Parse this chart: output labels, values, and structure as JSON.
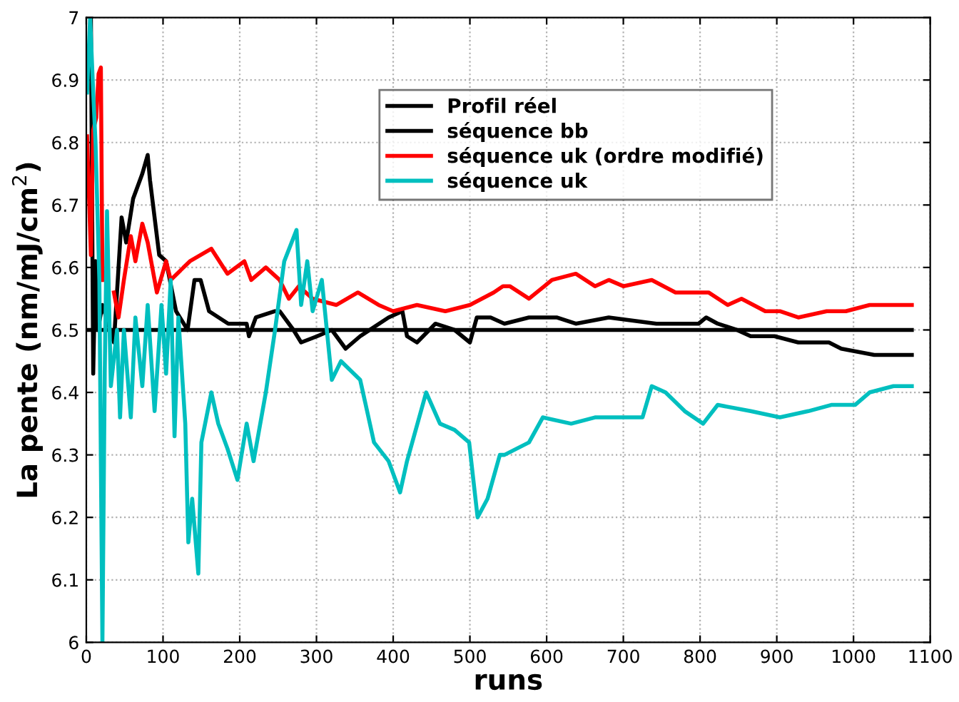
{
  "chart_data": {
    "type": "line",
    "xlabel": "runs",
    "ylabel": "La pente (nm/mJ/cm$^{2}$)",
    "xlim": [
      0,
      1100
    ],
    "ylim": [
      6,
      7
    ],
    "xticks": [
      0,
      100,
      200,
      300,
      400,
      500,
      600,
      700,
      800,
      900,
      1000,
      1100
    ],
    "yticks": [
      6,
      6.1,
      6.2,
      6.3,
      6.4,
      6.5,
      6.6,
      6.7,
      6.8,
      6.9,
      7
    ],
    "grid": true,
    "legend": "top",
    "marker": "none",
    "line_style": "solid",
    "series": [
      {
        "name": "Profil réel",
        "color": "#000000",
        "x": [
          0,
          1076
        ],
        "values": [
          6.5,
          6.5
        ]
      },
      {
        "name": "séquence bb",
        "color": "#000000",
        "x": [
          6,
          9,
          12,
          15,
          21,
          36,
          46,
          52,
          61,
          73,
          80,
          83,
          95,
          104,
          117,
          132,
          141,
          149,
          160,
          185,
          209,
          212,
          221,
          246,
          252,
          270,
          280,
          301,
          320,
          338,
          357,
          394,
          412,
          418,
          431,
          455,
          480,
          500,
          509,
          527,
          545,
          577,
          613,
          638,
          681,
          743,
          798,
          808,
          823,
          848,
          866,
          897,
          928,
          968,
          984,
          1027,
          1052,
          1064,
          1076
        ],
        "values": [
          7.0,
          6.43,
          6.61,
          6.5,
          6.54,
          6.48,
          6.68,
          6.64,
          6.71,
          6.75,
          6.78,
          6.74,
          6.62,
          6.61,
          6.53,
          6.5,
          6.58,
          6.58,
          6.53,
          6.51,
          6.51,
          6.49,
          6.52,
          6.53,
          6.53,
          6.5,
          6.48,
          6.49,
          6.5,
          6.47,
          6.49,
          6.52,
          6.53,
          6.49,
          6.48,
          6.51,
          6.5,
          6.48,
          6.52,
          6.52,
          6.51,
          6.52,
          6.52,
          6.51,
          6.52,
          6.51,
          6.51,
          6.52,
          6.51,
          6.5,
          6.49,
          6.49,
          6.48,
          6.48,
          6.47,
          6.46,
          6.46,
          6.46,
          6.46
        ]
      },
      {
        "name": "séquence uk (ordre modifié)",
        "color": "#ff0000",
        "x": [
          1,
          6,
          9,
          13,
          16,
          19,
          21,
          27,
          36,
          42,
          49,
          58,
          64,
          73,
          80,
          92,
          104,
          110,
          135,
          163,
          184,
          206,
          215,
          234,
          252,
          264,
          277,
          295,
          326,
          354,
          381,
          400,
          431,
          468,
          500,
          531,
          543,
          552,
          577,
          607,
          638,
          663,
          681,
          700,
          737,
          768,
          811,
          836,
          854,
          885,
          904,
          928,
          965,
          990,
          1021,
          1052,
          1076
        ],
        "values": [
          6.81,
          6.62,
          6.82,
          6.84,
          6.91,
          6.92,
          6.58,
          null,
          6.56,
          6.52,
          6.58,
          6.65,
          6.61,
          6.67,
          6.64,
          6.56,
          6.61,
          6.58,
          6.61,
          6.63,
          6.59,
          6.61,
          6.58,
          6.6,
          6.58,
          6.55,
          6.57,
          6.55,
          6.54,
          6.56,
          6.54,
          6.53,
          6.54,
          6.53,
          6.54,
          6.56,
          6.57,
          6.57,
          6.55,
          6.58,
          6.59,
          6.57,
          6.58,
          6.57,
          6.58,
          6.56,
          6.56,
          6.54,
          6.55,
          6.53,
          6.53,
          6.52,
          6.53,
          6.53,
          6.54,
          6.54,
          6.54
        ]
      },
      {
        "name": "séquence uk",
        "color": "#00bfbf",
        "x": [
          1,
          5,
          9,
          12,
          17,
          21,
          24,
          27,
          32,
          40,
          44,
          49,
          58,
          64,
          73,
          80,
          89,
          98,
          104,
          110,
          115,
          120,
          129,
          133,
          138,
          146,
          150,
          163,
          172,
          184,
          197,
          209,
          218,
          234,
          246,
          258,
          274,
          280,
          288,
          295,
          307,
          320,
          332,
          357,
          375,
          394,
          409,
          418,
          443,
          461,
          480,
          499,
          510,
          523,
          539,
          545,
          577,
          595,
          632,
          663,
          694,
          725,
          737,
          755,
          780,
          804,
          823,
          866,
          904,
          941,
          971,
          1002,
          1021,
          1052,
          1076
        ],
        "values": [
          6.88,
          7.0,
          6.88,
          6.8,
          6.58,
          6.0,
          6.43,
          6.69,
          6.41,
          6.5,
          6.36,
          6.5,
          6.36,
          6.52,
          6.41,
          6.54,
          6.37,
          6.54,
          6.43,
          6.58,
          6.33,
          6.52,
          6.35,
          6.16,
          6.23,
          6.11,
          6.32,
          6.4,
          6.35,
          6.31,
          6.26,
          6.35,
          6.29,
          6.4,
          6.5,
          6.61,
          6.66,
          6.54,
          6.61,
          6.53,
          6.58,
          6.42,
          6.45,
          6.42,
          6.32,
          6.29,
          6.24,
          6.29,
          6.4,
          6.35,
          6.34,
          6.32,
          6.2,
          6.23,
          6.3,
          6.3,
          6.32,
          6.36,
          6.35,
          6.36,
          6.36,
          6.36,
          6.41,
          6.4,
          6.37,
          6.35,
          6.38,
          6.37,
          6.36,
          6.37,
          6.38,
          6.38,
          6.4,
          6.41,
          6.41
        ]
      }
    ]
  }
}
